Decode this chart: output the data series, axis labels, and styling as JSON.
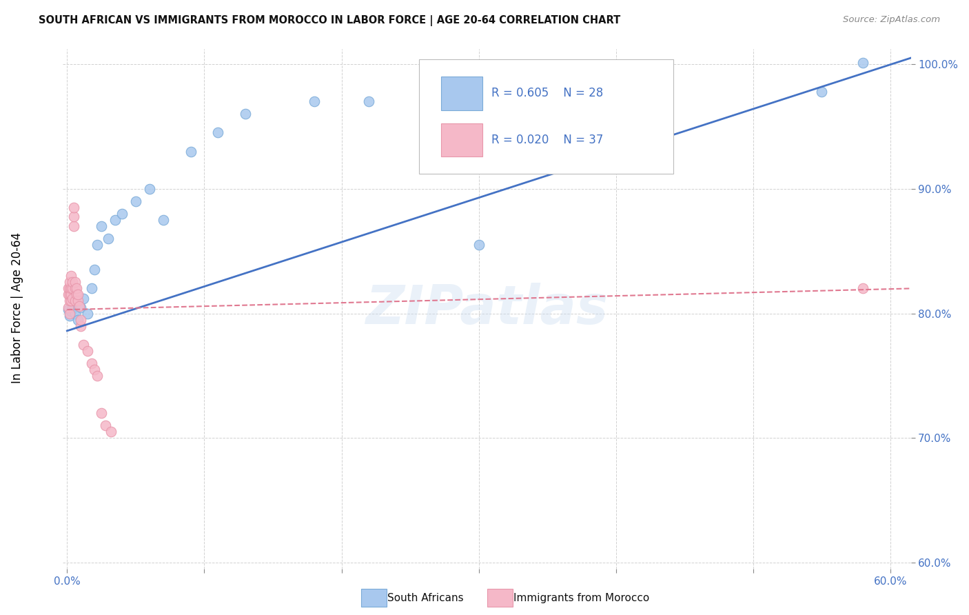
{
  "title": "SOUTH AFRICAN VS IMMIGRANTS FROM MOROCCO IN LABOR FORCE | AGE 20-64 CORRELATION CHART",
  "source": "Source: ZipAtlas.com",
  "ylabel": "In Labor Force | Age 20-64",
  "xlim": [
    -0.003,
    0.615
  ],
  "ylim": [
    0.595,
    1.012
  ],
  "xticks": [
    0.0,
    0.1,
    0.2,
    0.3,
    0.4,
    0.5,
    0.6
  ],
  "yticks": [
    0.6,
    0.7,
    0.8,
    0.9,
    1.0
  ],
  "blue_color": "#A8C8EE",
  "blue_edge": "#7AAAD8",
  "pink_color": "#F5B8C8",
  "pink_edge": "#E896AA",
  "line_blue": "#4472C4",
  "line_pink": "#E07890",
  "legend_label1": "South Africans",
  "legend_label2": "Immigrants from Morocco",
  "watermark": "ZIPatlas",
  "blue_scatter_x": [
    0.001,
    0.002,
    0.003,
    0.004,
    0.005,
    0.006,
    0.008,
    0.01,
    0.012,
    0.015,
    0.018,
    0.02,
    0.022,
    0.025,
    0.03,
    0.035,
    0.04,
    0.05,
    0.06,
    0.07,
    0.09,
    0.11,
    0.13,
    0.18,
    0.22,
    0.3,
    0.55,
    0.58
  ],
  "blue_scatter_y": [
    0.803,
    0.798,
    0.802,
    0.805,
    0.81,
    0.8,
    0.795,
    0.805,
    0.812,
    0.8,
    0.82,
    0.835,
    0.855,
    0.87,
    0.86,
    0.875,
    0.88,
    0.89,
    0.9,
    0.875,
    0.93,
    0.945,
    0.96,
    0.97,
    0.97,
    0.855,
    0.978,
    1.001
  ],
  "pink_scatter_x": [
    0.001,
    0.001,
    0.001,
    0.002,
    0.002,
    0.002,
    0.002,
    0.002,
    0.003,
    0.003,
    0.003,
    0.003,
    0.004,
    0.004,
    0.004,
    0.005,
    0.005,
    0.005,
    0.006,
    0.006,
    0.006,
    0.007,
    0.007,
    0.008,
    0.008,
    0.009,
    0.01,
    0.01,
    0.012,
    0.015,
    0.018,
    0.02,
    0.022,
    0.025,
    0.028,
    0.032,
    0.58
  ],
  "pink_scatter_y": [
    0.805,
    0.815,
    0.82,
    0.8,
    0.81,
    0.815,
    0.82,
    0.825,
    0.81,
    0.815,
    0.82,
    0.83,
    0.812,
    0.82,
    0.825,
    0.87,
    0.878,
    0.885,
    0.81,
    0.82,
    0.825,
    0.815,
    0.82,
    0.81,
    0.815,
    0.806,
    0.79,
    0.795,
    0.775,
    0.77,
    0.76,
    0.755,
    0.75,
    0.72,
    0.71,
    0.705,
    0.82
  ],
  "blue_line_x": [
    0.0,
    0.615
  ],
  "blue_line_y": [
    0.786,
    1.005
  ],
  "pink_line_x": [
    0.0,
    0.615
  ],
  "pink_line_y": [
    0.803,
    0.82
  ]
}
